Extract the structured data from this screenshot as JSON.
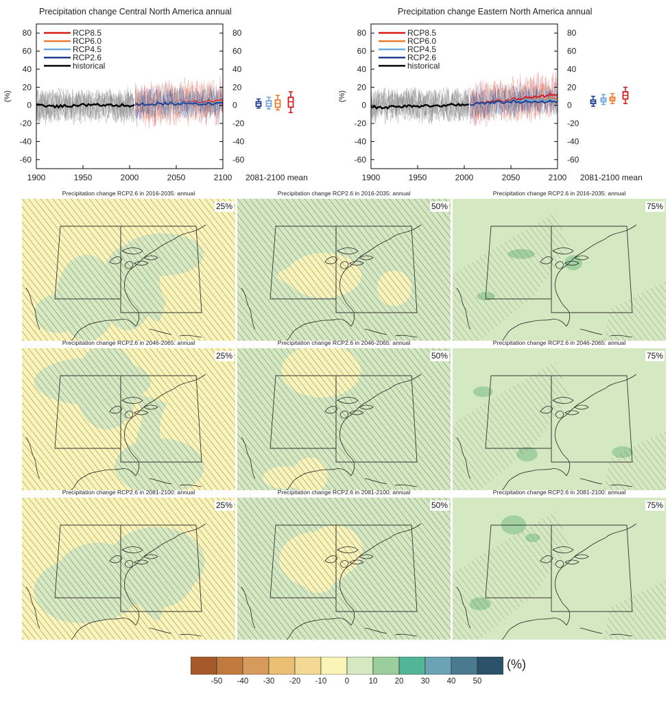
{
  "chart_data": [
    {
      "type": "line",
      "title": "Precipitation change Central North America annual",
      "ylabel": "(%)",
      "xlim": [
        1900,
        2100
      ],
      "ylim": [
        -70,
        90
      ],
      "xticks": [
        1900,
        1950,
        2000,
        2050,
        2100
      ],
      "yticks": [
        -60,
        -40,
        -20,
        0,
        20,
        40,
        60,
        80
      ],
      "legend": {
        "placement": "top-left",
        "entries": [
          "RCP8.5",
          "RCP6.0",
          "RCP4.5",
          "RCP2.6",
          "historical"
        ]
      },
      "series": [
        {
          "name": "historical",
          "x": [
            1900,
            1920,
            1940,
            1960,
            1980,
            2000,
            2005
          ],
          "y": [
            0,
            -1,
            0,
            1,
            0,
            0,
            1
          ]
        },
        {
          "name": "RCP2.6",
          "x": [
            2006,
            2030,
            2050,
            2070,
            2100
          ],
          "y": [
            1,
            2,
            2,
            2,
            2
          ]
        },
        {
          "name": "RCP4.5",
          "x": [
            2006,
            2030,
            2050,
            2070,
            2100
          ],
          "y": [
            1,
            2,
            3,
            3,
            3
          ]
        },
        {
          "name": "RCP6.0",
          "x": [
            2006,
            2030,
            2050,
            2070,
            2100
          ],
          "y": [
            1,
            2,
            2,
            3,
            4
          ]
        },
        {
          "name": "RCP8.5",
          "x": [
            2006,
            2030,
            2050,
            2070,
            2100
          ],
          "y": [
            1,
            2,
            3,
            4,
            5
          ]
        }
      ],
      "boxplots_label": "2081-2100 mean",
      "boxplots": [
        {
          "name": "RCP2.6",
          "min": -3,
          "q1": -1,
          "median": 2,
          "q3": 4,
          "max": 7
        },
        {
          "name": "RCP4.5",
          "min": -4,
          "q1": -1,
          "median": 2,
          "q3": 5,
          "max": 9
        },
        {
          "name": "RCP6.0",
          "min": -5,
          "q1": -2,
          "median": 2,
          "q3": 6,
          "max": 11
        },
        {
          "name": "RCP8.5",
          "min": -8,
          "q1": -2,
          "median": 4,
          "q3": 9,
          "max": 15
        }
      ]
    },
    {
      "type": "line",
      "title": "Precipitation change Eastern North America annual",
      "ylabel": "(%)",
      "xlim": [
        1900,
        2100
      ],
      "ylim": [
        -70,
        90
      ],
      "xticks": [
        1900,
        1950,
        2000,
        2050,
        2100
      ],
      "yticks": [
        -60,
        -40,
        -20,
        0,
        20,
        40,
        60,
        80
      ],
      "legend": {
        "placement": "top-left",
        "entries": [
          "RCP8.5",
          "RCP6.0",
          "RCP4.5",
          "RCP2.6",
          "historical"
        ]
      },
      "series": [
        {
          "name": "historical",
          "x": [
            1900,
            1920,
            1940,
            1960,
            1980,
            2000,
            2005
          ],
          "y": [
            -2,
            -2,
            -1,
            -1,
            0,
            1,
            1
          ]
        },
        {
          "name": "RCP2.6",
          "x": [
            2006,
            2030,
            2050,
            2070,
            2100
          ],
          "y": [
            1,
            3,
            4,
            4,
            4
          ]
        },
        {
          "name": "RCP4.5",
          "x": [
            2006,
            2030,
            2050,
            2070,
            2100
          ],
          "y": [
            1,
            3,
            5,
            6,
            6
          ]
        },
        {
          "name": "RCP6.0",
          "x": [
            2006,
            2030,
            2050,
            2070,
            2100
          ],
          "y": [
            1,
            3,
            4,
            6,
            8
          ]
        },
        {
          "name": "RCP8.5",
          "x": [
            2006,
            2030,
            2050,
            2070,
            2100
          ],
          "y": [
            1,
            4,
            6,
            9,
            12
          ]
        }
      ],
      "boxplots_label": "2081-2100 mean",
      "boxplots": [
        {
          "name": "RCP2.6",
          "min": -1,
          "q1": 2,
          "median": 4,
          "q3": 6,
          "max": 10
        },
        {
          "name": "RCP4.5",
          "min": 1,
          "q1": 4,
          "median": 6,
          "q3": 8,
          "max": 12
        },
        {
          "name": "RCP6.0",
          "min": 2,
          "q1": 5,
          "median": 7,
          "q3": 9,
          "max": 13
        },
        {
          "name": "RCP8.5",
          "min": 2,
          "q1": 7,
          "median": 11,
          "q3": 15,
          "max": 20
        }
      ]
    },
    {
      "type": "heatmap",
      "maps": [
        {
          "title": "Precipitation change RCP2.6 in 2016-2035: annual",
          "percentile": "25%",
          "dominant_class": "-10 to 0"
        },
        {
          "title": "Precipitation change RCP2.6 in 2016-2035: annual",
          "percentile": "50%",
          "dominant_class": "0 to 10"
        },
        {
          "title": "Precipitation change RCP2.6 in 2016-2035: annual",
          "percentile": "75%",
          "dominant_class": "0 to 10"
        },
        {
          "title": "Precipitation change RCP2.6 in 2046-2065: annual",
          "percentile": "25%",
          "dominant_class": "-10 to 0"
        },
        {
          "title": "Precipitation change RCP2.6 in 2046-2065: annual",
          "percentile": "50%",
          "dominant_class": "0 to 10"
        },
        {
          "title": "Precipitation change RCP2.6 in 2046-2065: annual",
          "percentile": "75%",
          "dominant_class": "0 to 10"
        },
        {
          "title": "Precipitation change RCP2.6 in 2081-2100: annual",
          "percentile": "25%",
          "dominant_class": "-10 to 0"
        },
        {
          "title": "Precipitation change RCP2.6 in 2081-2100: annual",
          "percentile": "50%",
          "dominant_class": "0 to 10"
        },
        {
          "title": "Precipitation change RCP2.6 in 2081-2100: annual",
          "percentile": "75%",
          "dominant_class": "0 to 10"
        }
      ],
      "colorbar": {
        "unit": "(%)",
        "labels": [
          "-50",
          "-40",
          "-30",
          "-20",
          "-10",
          "0",
          "10",
          "20",
          "30",
          "40",
          "50"
        ],
        "colors": [
          "#a65a2b",
          "#c07a3e",
          "#d59a5c",
          "#e9bf74",
          "#f3d993",
          "#fbf4b9",
          "#d4e8c1",
          "#9ccd9c",
          "#52b596",
          "#6ba2b4",
          "#4a7a8f",
          "#2b5268"
        ]
      }
    }
  ],
  "colors": {
    "rcp85": "#d7191c",
    "rcp60": "#ee7a2d",
    "rcp45": "#6fa8dc",
    "rcp26": "#1f3f8f",
    "historical": "#000000",
    "model_spread": "#8a8a8a"
  }
}
